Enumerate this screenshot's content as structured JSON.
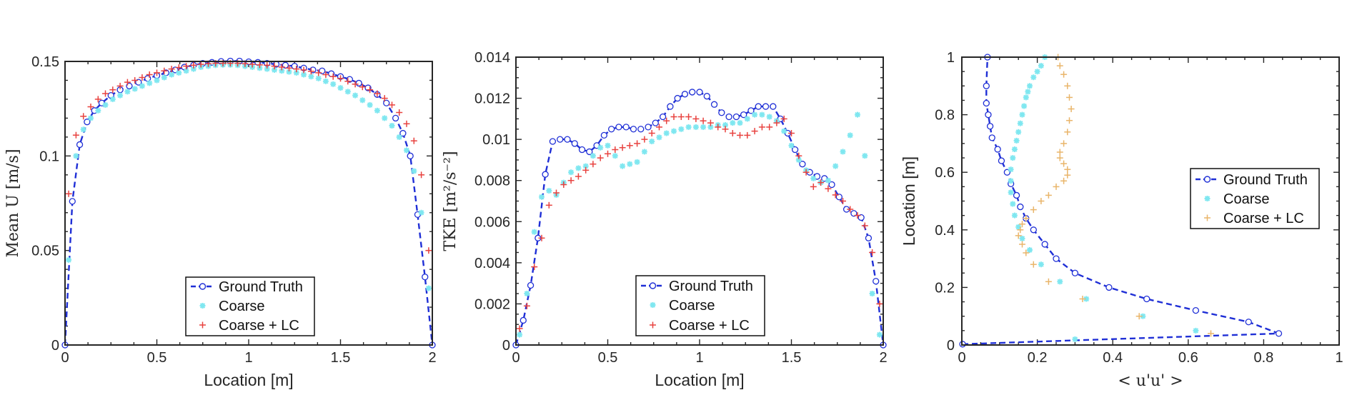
{
  "colors": {
    "truth": "#1f2fd6",
    "coarse": "#7fe7f0",
    "lc_red": "#e8423f",
    "lc_orange": "#e9b56a",
    "axis": "#262626"
  },
  "legend": {
    "truth": "Ground Truth",
    "coarse": "Coarse",
    "lc": "Coarse + LC"
  },
  "chart_data": [
    {
      "type": "line",
      "title": "",
      "xlabel": "Location [m]",
      "ylabel": "Mean U [m/s]",
      "xlim": [
        0,
        2
      ],
      "ylim": [
        0,
        0.15
      ],
      "xticks": [
        "0",
        "0.5",
        "1",
        "1.5",
        "2"
      ],
      "yticks": [
        "0",
        "0.05",
        "0.1",
        "0.15"
      ],
      "legend_position": "bottom-center",
      "series": [
        {
          "name": "Ground Truth",
          "style": "dashed-circle",
          "x": [
            0,
            0.04,
            0.08,
            0.12,
            0.16,
            0.2,
            0.25,
            0.3,
            0.35,
            0.4,
            0.45,
            0.5,
            0.55,
            0.6,
            0.65,
            0.7,
            0.75,
            0.8,
            0.85,
            0.9,
            0.95,
            1.0,
            1.05,
            1.1,
            1.15,
            1.2,
            1.25,
            1.3,
            1.35,
            1.4,
            1.45,
            1.5,
            1.55,
            1.6,
            1.65,
            1.7,
            1.75,
            1.8,
            1.84,
            1.88,
            1.92,
            1.96,
            2.0
          ],
          "y": [
            0,
            0.076,
            0.106,
            0.118,
            0.124,
            0.128,
            0.132,
            0.135,
            0.137,
            0.139,
            0.141,
            0.1425,
            0.144,
            0.1455,
            0.147,
            0.148,
            0.149,
            0.1495,
            0.15,
            0.1502,
            0.1502,
            0.1498,
            0.1495,
            0.149,
            0.1485,
            0.148,
            0.1475,
            0.1465,
            0.1455,
            0.145,
            0.1435,
            0.142,
            0.1405,
            0.1385,
            0.136,
            0.1325,
            0.128,
            0.12,
            0.112,
            0.1,
            0.069,
            0.036,
            0
          ]
        },
        {
          "name": "Coarse",
          "style": "asterisk",
          "x": [
            0.02,
            0.06,
            0.1,
            0.14,
            0.18,
            0.22,
            0.26,
            0.3,
            0.34,
            0.38,
            0.42,
            0.46,
            0.5,
            0.54,
            0.58,
            0.62,
            0.66,
            0.7,
            0.74,
            0.78,
            0.82,
            0.86,
            0.9,
            0.94,
            0.98,
            1.02,
            1.06,
            1.1,
            1.14,
            1.18,
            1.22,
            1.26,
            1.3,
            1.34,
            1.38,
            1.42,
            1.46,
            1.5,
            1.54,
            1.58,
            1.62,
            1.66,
            1.7,
            1.74,
            1.78,
            1.82,
            1.86,
            1.9,
            1.94,
            1.98
          ],
          "y": [
            0.045,
            0.1,
            0.114,
            0.12,
            0.124,
            0.127,
            0.13,
            0.132,
            0.134,
            0.1355,
            0.137,
            0.1385,
            0.14,
            0.1415,
            0.143,
            0.144,
            0.145,
            0.146,
            0.147,
            0.1475,
            0.148,
            0.1482,
            0.1482,
            0.148,
            0.1475,
            0.147,
            0.1465,
            0.146,
            0.1455,
            0.145,
            0.1445,
            0.144,
            0.143,
            0.142,
            0.141,
            0.1395,
            0.138,
            0.136,
            0.134,
            0.132,
            0.1295,
            0.127,
            0.124,
            0.12,
            0.116,
            0.11,
            0.103,
            0.092,
            0.07,
            0.03
          ]
        },
        {
          "name": "Coarse + LC",
          "style": "plus",
          "x": [
            0.02,
            0.06,
            0.1,
            0.14,
            0.18,
            0.22,
            0.26,
            0.3,
            0.34,
            0.38,
            0.42,
            0.46,
            0.5,
            0.54,
            0.58,
            0.62,
            0.66,
            0.7,
            0.74,
            0.78,
            0.82,
            0.86,
            0.9,
            0.94,
            0.98,
            1.02,
            1.06,
            1.1,
            1.14,
            1.18,
            1.22,
            1.26,
            1.3,
            1.34,
            1.38,
            1.42,
            1.46,
            1.5,
            1.54,
            1.58,
            1.62,
            1.66,
            1.7,
            1.74,
            1.78,
            1.82,
            1.86,
            1.9,
            1.94,
            1.98
          ],
          "y": [
            0.08,
            0.111,
            0.121,
            0.126,
            0.13,
            0.133,
            0.135,
            0.137,
            0.139,
            0.14,
            0.1415,
            0.143,
            0.144,
            0.145,
            0.146,
            0.1468,
            0.1475,
            0.148,
            0.1485,
            0.1488,
            0.149,
            0.149,
            0.149,
            0.149,
            0.1488,
            0.1485,
            0.1482,
            0.148,
            0.1475,
            0.147,
            0.1465,
            0.146,
            0.1455,
            0.1448,
            0.144,
            0.143,
            0.142,
            0.141,
            0.1395,
            0.138,
            0.1365,
            0.135,
            0.133,
            0.1305,
            0.127,
            0.123,
            0.117,
            0.108,
            0.09,
            0.05
          ]
        }
      ]
    },
    {
      "type": "line",
      "title": "",
      "xlabel": "Location [m]",
      "ylabel": "TKE [m²/s⁻²]",
      "xlim": [
        0,
        2
      ],
      "ylim": [
        0,
        0.014
      ],
      "xticks": [
        "0",
        "0.5",
        "1",
        "1.5",
        "2"
      ],
      "yticks": [
        "0",
        "0.002",
        "0.004",
        "0.006",
        "0.008",
        "0.01",
        "0.012",
        "0.014"
      ],
      "legend_position": "bottom-center",
      "series": [
        {
          "name": "Ground Truth",
          "style": "dashed-circle",
          "x": [
            0,
            0.04,
            0.08,
            0.12,
            0.16,
            0.2,
            0.24,
            0.28,
            0.32,
            0.36,
            0.4,
            0.44,
            0.48,
            0.52,
            0.56,
            0.6,
            0.64,
            0.68,
            0.72,
            0.76,
            0.8,
            0.84,
            0.88,
            0.92,
            0.96,
            1.0,
            1.04,
            1.08,
            1.12,
            1.16,
            1.2,
            1.24,
            1.28,
            1.32,
            1.36,
            1.4,
            1.44,
            1.48,
            1.52,
            1.56,
            1.6,
            1.64,
            1.68,
            1.72,
            1.76,
            1.8,
            1.84,
            1.88,
            1.92,
            1.96,
            2.0
          ],
          "y": [
            0,
            0.0012,
            0.0029,
            0.0052,
            0.0083,
            0.0099,
            0.01,
            0.01,
            0.0098,
            0.0095,
            0.0094,
            0.0097,
            0.0102,
            0.0105,
            0.0106,
            0.0106,
            0.0105,
            0.0105,
            0.0106,
            0.0108,
            0.0111,
            0.0116,
            0.012,
            0.0122,
            0.0123,
            0.0123,
            0.0121,
            0.0117,
            0.0113,
            0.0111,
            0.0111,
            0.0112,
            0.0114,
            0.0116,
            0.0116,
            0.0116,
            0.011,
            0.0103,
            0.0095,
            0.0088,
            0.0084,
            0.0082,
            0.0081,
            0.0078,
            0.0072,
            0.0066,
            0.0064,
            0.0062,
            0.0052,
            0.0031,
            0
          ]
        },
        {
          "name": "Coarse",
          "style": "asterisk",
          "x": [
            0.02,
            0.06,
            0.1,
            0.14,
            0.18,
            0.22,
            0.26,
            0.3,
            0.34,
            0.38,
            0.42,
            0.46,
            0.5,
            0.54,
            0.58,
            0.62,
            0.66,
            0.7,
            0.74,
            0.78,
            0.82,
            0.86,
            0.9,
            0.94,
            0.98,
            1.02,
            1.06,
            1.1,
            1.14,
            1.18,
            1.22,
            1.26,
            1.3,
            1.34,
            1.38,
            1.42,
            1.46,
            1.5,
            1.54,
            1.58,
            1.62,
            1.66,
            1.7,
            1.74,
            1.78,
            1.82,
            1.86,
            1.9,
            1.94,
            1.98
          ],
          "y": [
            0.0005,
            0.0025,
            0.0055,
            0.0072,
            0.0075,
            0.0073,
            0.0079,
            0.0084,
            0.0086,
            0.0087,
            0.0092,
            0.0096,
            0.0097,
            0.0092,
            0.0087,
            0.0088,
            0.0089,
            0.0094,
            0.0099,
            0.0101,
            0.0103,
            0.0104,
            0.0105,
            0.0106,
            0.0106,
            0.0106,
            0.0106,
            0.0107,
            0.0107,
            0.0108,
            0.0108,
            0.011,
            0.0112,
            0.0112,
            0.0111,
            0.0109,
            0.0104,
            0.0097,
            0.009,
            0.0085,
            0.0081,
            0.0079,
            0.008,
            0.0087,
            0.0094,
            0.0102,
            0.0112,
            0.0092,
            0.0025,
            0.0005
          ]
        },
        {
          "name": "Coarse + LC",
          "style": "plus",
          "x": [
            0.02,
            0.06,
            0.1,
            0.14,
            0.18,
            0.22,
            0.26,
            0.3,
            0.34,
            0.38,
            0.42,
            0.46,
            0.5,
            0.54,
            0.58,
            0.62,
            0.66,
            0.7,
            0.74,
            0.78,
            0.82,
            0.86,
            0.9,
            0.94,
            0.98,
            1.02,
            1.06,
            1.1,
            1.14,
            1.18,
            1.22,
            1.26,
            1.3,
            1.34,
            1.38,
            1.42,
            1.46,
            1.5,
            1.54,
            1.58,
            1.62,
            1.66,
            1.7,
            1.74,
            1.78,
            1.82,
            1.86,
            1.9,
            1.94,
            1.98
          ],
          "y": [
            0.0008,
            0.0019,
            0.0038,
            0.0052,
            0.0068,
            0.0074,
            0.0078,
            0.008,
            0.0082,
            0.0085,
            0.0088,
            0.0091,
            0.0093,
            0.0095,
            0.0096,
            0.0097,
            0.0098,
            0.01,
            0.0103,
            0.0106,
            0.0109,
            0.0111,
            0.0111,
            0.0111,
            0.011,
            0.0109,
            0.0108,
            0.0106,
            0.0105,
            0.0103,
            0.0102,
            0.0102,
            0.0104,
            0.0106,
            0.0106,
            0.0108,
            0.011,
            0.0103,
            0.0092,
            0.0084,
            0.0077,
            0.0079,
            0.0076,
            0.0073,
            0.007,
            0.0066,
            0.0063,
            0.0058,
            0.0045,
            0.002
          ]
        }
      ]
    },
    {
      "type": "line",
      "title": "",
      "xlabel": "< u'u' >",
      "ylabel": "Location [m]",
      "xlim": [
        0,
        1
      ],
      "ylim": [
        0,
        1
      ],
      "xticks": [
        "0",
        "0.2",
        "0.4",
        "0.6",
        "0.8",
        "1"
      ],
      "yticks": [
        "0",
        "0.2",
        "0.4",
        "0.6",
        "0.8",
        "1"
      ],
      "legend_position": "right-center",
      "series": [
        {
          "name": "Ground Truth",
          "style": "dashed-circle",
          "x": [
            0.002,
            0.84,
            0.76,
            0.62,
            0.49,
            0.39,
            0.3,
            0.25,
            0.22,
            0.19,
            0.17,
            0.155,
            0.145,
            0.13,
            0.12,
            0.105,
            0.095,
            0.08,
            0.075,
            0.07,
            0.065,
            0.065,
            0.068
          ],
          "y": [
            0.003,
            0.04,
            0.08,
            0.12,
            0.16,
            0.2,
            0.25,
            0.3,
            0.35,
            0.4,
            0.44,
            0.48,
            0.52,
            0.56,
            0.6,
            0.64,
            0.68,
            0.72,
            0.76,
            0.8,
            0.84,
            0.9,
            1.0
          ]
        },
        {
          "name": "Coarse",
          "style": "asterisk",
          "x": [
            0.3,
            0.62,
            0.48,
            0.33,
            0.26,
            0.21,
            0.18,
            0.16,
            0.15,
            0.14,
            0.135,
            0.13,
            0.13,
            0.13,
            0.135,
            0.14,
            0.145,
            0.15,
            0.155,
            0.16,
            0.165,
            0.17,
            0.175,
            0.18,
            0.19,
            0.2,
            0.21,
            0.22
          ],
          "y": [
            0.02,
            0.05,
            0.1,
            0.16,
            0.22,
            0.28,
            0.33,
            0.37,
            0.41,
            0.45,
            0.49,
            0.53,
            0.57,
            0.61,
            0.65,
            0.68,
            0.71,
            0.74,
            0.77,
            0.8,
            0.83,
            0.86,
            0.88,
            0.9,
            0.93,
            0.95,
            0.97,
            1.0
          ]
        },
        {
          "name": "Coarse + LC",
          "style": "plus",
          "x": [
            0.66,
            0.47,
            0.32,
            0.23,
            0.19,
            0.17,
            0.16,
            0.15,
            0.155,
            0.16,
            0.17,
            0.19,
            0.21,
            0.23,
            0.25,
            0.27,
            0.28,
            0.28,
            0.27,
            0.26,
            0.26,
            0.27,
            0.28,
            0.285,
            0.29,
            0.285,
            0.28,
            0.27,
            0.26,
            0.255
          ],
          "y": [
            0.04,
            0.1,
            0.16,
            0.22,
            0.28,
            0.32,
            0.35,
            0.38,
            0.4,
            0.42,
            0.44,
            0.47,
            0.5,
            0.52,
            0.55,
            0.57,
            0.59,
            0.61,
            0.63,
            0.65,
            0.67,
            0.7,
            0.74,
            0.78,
            0.82,
            0.86,
            0.9,
            0.94,
            0.97,
            1.0
          ]
        }
      ]
    }
  ]
}
